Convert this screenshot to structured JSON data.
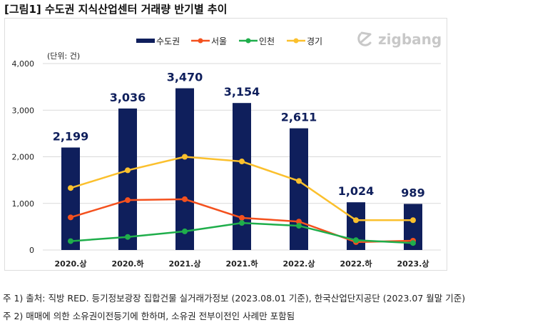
{
  "title": "[그림1] 수도권 지식산업센터 거래량 반기별 추이",
  "logo": "zigbang",
  "notes": [
    "주 1) 출처: 직방 RED. 등기정보광장 집합건물 실거래가정보 (2023.08.01 기준), 한국산업단지공단 (2023.07 월말 기준)",
    "주 2) 매매에 의한 소유권이전등기에 한하며, 소유권 전부이전인 사례만 포함됨"
  ],
  "chart_data": {
    "type": "bar+line",
    "unit_label": "(단위: 건)",
    "categories": [
      "2020.상",
      "2020.하",
      "2021.상",
      "2021.하",
      "2022.상",
      "2022.하",
      "2023.상"
    ],
    "ylim": [
      0,
      4000
    ],
    "yticks": [
      0,
      1000,
      2000,
      3000,
      4000
    ],
    "ytick_labels": [
      "0",
      "1,000",
      "2,000",
      "3,000",
      "4,000"
    ],
    "legend_position": "top-right",
    "bar_series": {
      "name": "수도권",
      "color": "#0f1f5c",
      "values": [
        2199,
        3036,
        3470,
        3154,
        2611,
        1024,
        989
      ],
      "labels": [
        "2,199",
        "3,036",
        "3,470",
        "3,154",
        "2,611",
        "1,024",
        "989"
      ]
    },
    "line_series": [
      {
        "name": "서울",
        "color": "#f4511e",
        "values": [
          700,
          1070,
          1090,
          690,
          610,
          170,
          200
        ]
      },
      {
        "name": "인천",
        "color": "#1fae4b",
        "values": [
          190,
          280,
          400,
          580,
          520,
          210,
          150
        ]
      },
      {
        "name": "경기",
        "color": "#fbc02d",
        "values": [
          1330,
          1710,
          2000,
          1900,
          1480,
          640,
          640
        ]
      }
    ]
  }
}
